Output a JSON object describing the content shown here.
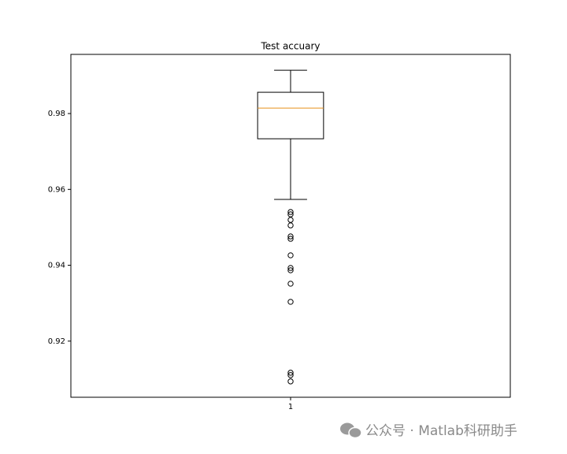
{
  "chart_data": {
    "type": "box",
    "title": "Test accuary",
    "categories": [
      "1"
    ],
    "boxes": [
      {
        "whislo": 0.95736,
        "q1": 0.97335,
        "med": 0.98145,
        "q3": 0.98561,
        "whishi": 0.99142,
        "fliers": [
          0.95404,
          0.95342,
          0.95196,
          0.95051,
          0.9476,
          0.94698,
          0.94262,
          0.93929,
          0.93867,
          0.93514,
          0.93036,
          0.91167,
          0.91105,
          0.90938
        ]
      }
    ],
    "box_color": "#000000",
    "median_color": "#e8901a",
    "ylim": [
      0.9052,
      0.9956
    ],
    "yticks": [
      0.92,
      0.94,
      0.96,
      0.98
    ]
  },
  "watermark": "公众号 · Matlab科研助手"
}
